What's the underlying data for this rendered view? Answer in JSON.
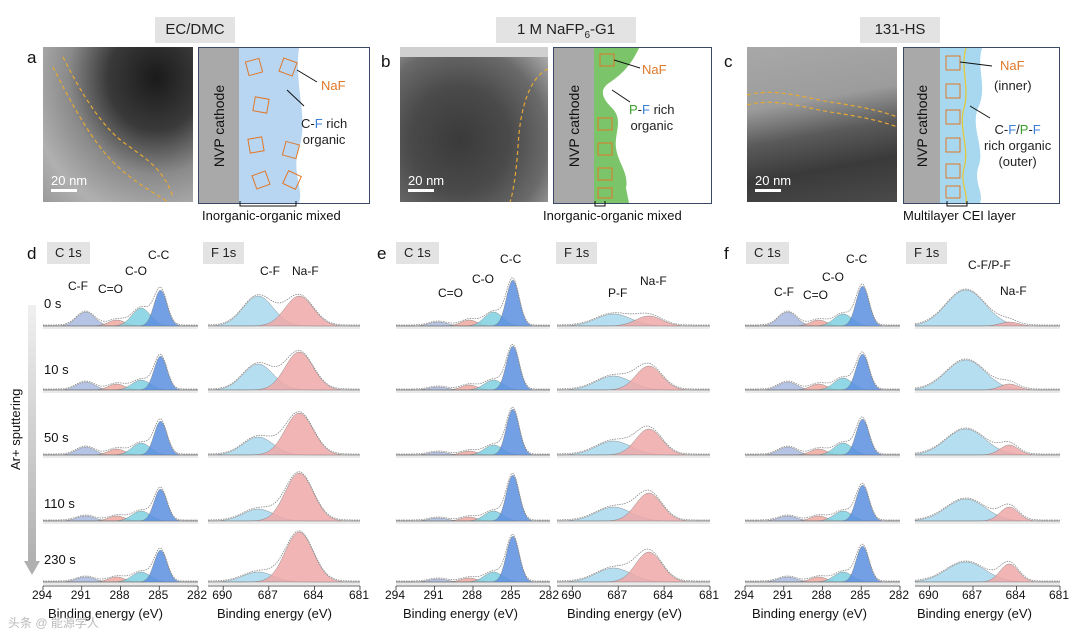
{
  "panels": {
    "a": {
      "letter": "a",
      "title": "EC/DMC",
      "scale": "20 nm",
      "cathode": "NVP cathode",
      "naf": "NaF",
      "org_pre": "C-",
      "org_f": "F",
      "org_post": " rich",
      "org_line2": "organic",
      "caption": "Inorganic-organic mixed"
    },
    "b": {
      "letter": "b",
      "title_pre": "1 M NaFP",
      "title_sub": "6",
      "title_post": "-G1",
      "scale": "20 nm",
      "cathode": "NVP cathode",
      "naf": "NaF",
      "org_p": "P",
      "org_mid": "-",
      "org_f": "F",
      "org_post": " rich",
      "org_line2": "organic",
      "caption": "Inorganic-organic mixed"
    },
    "c": {
      "letter": "c",
      "title": "131-HS",
      "scale": "20 nm",
      "cathode": "NVP cathode",
      "naf": "NaF",
      "naf_sub": "(inner)",
      "org_c": "C-",
      "org_f1": "F",
      "org_slash": "/",
      "org_p": "P",
      "org_dash": "-",
      "org_f2": "F",
      "org_line2": "rich organic",
      "org_line3": "(outer)",
      "caption": "Multilayer CEI layer"
    }
  },
  "xps": {
    "d": {
      "letter": "d"
    },
    "e": {
      "letter": "e"
    },
    "f": {
      "letter": "f"
    },
    "c1s_tag": "C 1s",
    "f1s_tag": "F 1s",
    "xlabel": "Binding energy (eV)",
    "c1s_ticks": [
      "294",
      "291",
      "288",
      "285",
      "282"
    ],
    "f1s_ticks": [
      "690",
      "687",
      "684",
      "681"
    ],
    "times": [
      "0 s",
      "10 s",
      "50 s",
      "110 s",
      "230 s"
    ],
    "sputter_label": "Ar+ sputtering",
    "peaks_d_c": {
      "cf": "C-F",
      "co2": "C=O",
      "co": "C-O",
      "cc": "C-C"
    },
    "peaks_d_f": {
      "cf": "C-F",
      "naf": "Na-F"
    },
    "peaks_e_c": {
      "co2": "C=O",
      "co": "C-O",
      "cc": "C-C"
    },
    "peaks_e_f": {
      "pf": "P-F",
      "naf": "Na-F"
    },
    "peaks_f_c": {
      "cf": "C-F",
      "co2": "C=O",
      "co": "C-O",
      "cc": "C-C"
    },
    "peaks_f_f": {
      "cfpf": "C-F/P-F",
      "naf": "Na-F"
    }
  },
  "colors": {
    "cc": "#5b8fe0",
    "co": "#7fd0e0",
    "co2": "#f0a8a0",
    "cf": "#a8b8e0",
    "naf": "#f0a8a8",
    "cfF": "#a8d8ef",
    "blue_layer": "#b8d6f2",
    "green_layer": "#7cc46a",
    "box": "#e0782a"
  },
  "watermark": "头条 @ 能源学人"
}
